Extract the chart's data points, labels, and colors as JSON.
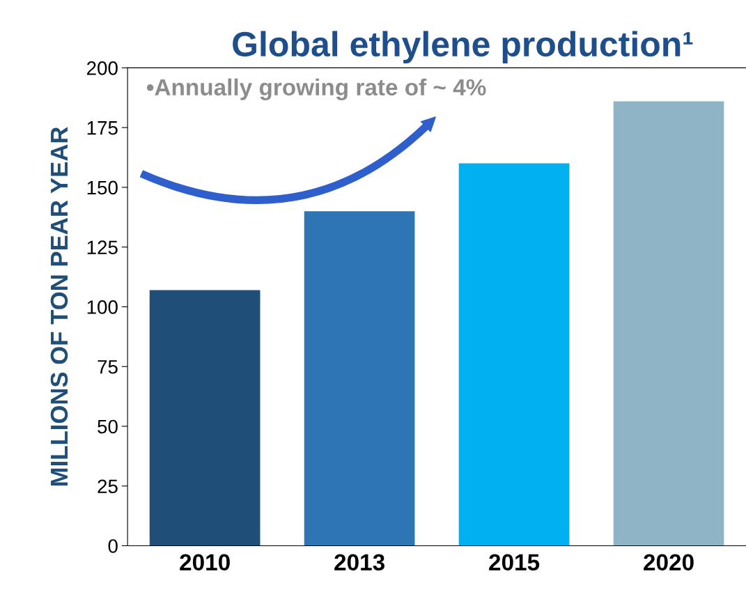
{
  "chart_data": {
    "type": "bar",
    "title": "Global ethylene production¹",
    "ylabel": "MILLIONS OF TON PEAR YEAR",
    "categories": [
      "2010",
      "2013",
      "2015",
      "2020"
    ],
    "values": [
      107,
      140,
      160,
      186
    ],
    "colors": [
      "#1f4e79",
      "#2e75b6",
      "#00b0f0",
      "#8eb4c6"
    ],
    "ylim": [
      0,
      200
    ],
    "yticks": [
      0,
      25,
      50,
      75,
      100,
      125,
      150,
      175,
      200
    ],
    "annotations": [
      "•Annually growing rate of ~ 4%"
    ],
    "grid": false,
    "legend": false
  }
}
